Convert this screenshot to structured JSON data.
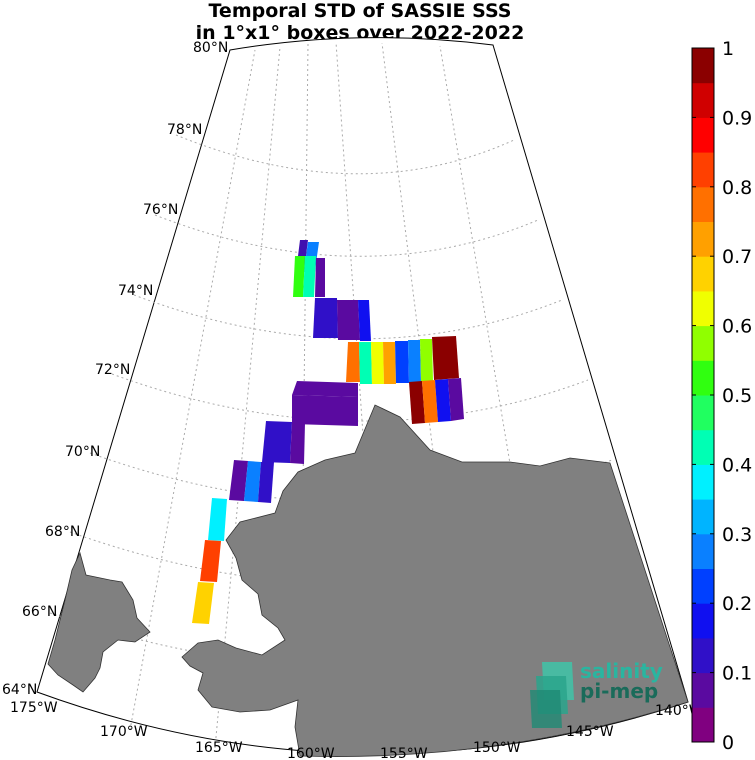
{
  "title": {
    "line1": "Temporal STD of SASSIE SSS",
    "line2": "in 1°x1° boxes over 2022-2022"
  },
  "map": {
    "projection": "stereographic-sector",
    "lat_range": [
      64,
      80
    ],
    "lon_range": [
      -175,
      -140
    ],
    "lat_labels": [
      "64°N",
      "66°N",
      "68°N",
      "70°N",
      "72°N",
      "74°N",
      "76°N",
      "78°N",
      "80°N"
    ],
    "lon_labels": [
      "175°W",
      "170°W",
      "165°W",
      "160°W",
      "155°W",
      "150°W",
      "145°W",
      "140°W"
    ],
    "land_color": "#808080",
    "grid": "dotted"
  },
  "colorbar": {
    "ticks": [
      "0",
      "0.1",
      "0.2",
      "0.3",
      "0.4",
      "0.5",
      "0.6",
      "0.7",
      "0.8",
      "0.9",
      "1"
    ],
    "colors": [
      "#800080",
      "#5a0aa0",
      "#3010c8",
      "#1010f0",
      "#0040ff",
      "#0a80ff",
      "#00b4ff",
      "#00f0ff",
      "#00ffb4",
      "#20ff60",
      "#30ff10",
      "#90ff00",
      "#f0ff00",
      "#ffd200",
      "#ffa000",
      "#ff7000",
      "#ff4000",
      "#ff0000",
      "#d00000",
      "#8b0000"
    ],
    "range": [
      0,
      1
    ]
  },
  "logo": {
    "line1": "salinity",
    "line2": "pi-mep",
    "color1": "#2ab5a0",
    "color2": "#1a6b5a"
  }
}
